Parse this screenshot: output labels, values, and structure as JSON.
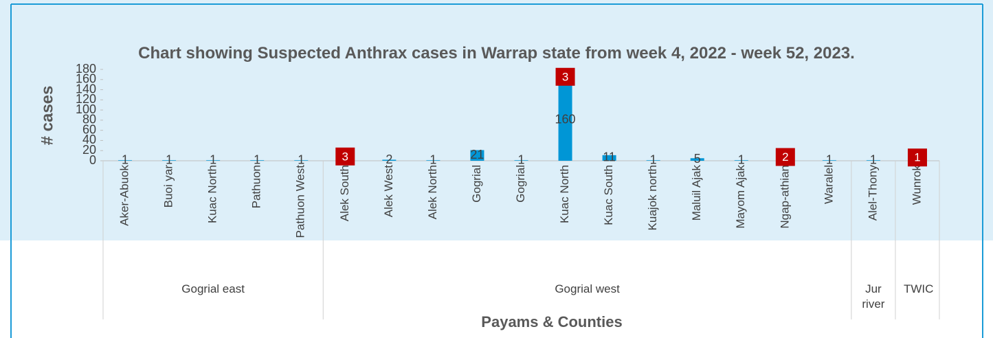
{
  "chart_data": {
    "type": "bar",
    "title": "Chart showing Suspected Anthrax cases in Warrap state from week 4, 2022 - week 52, 2023.",
    "y_label": "# cases",
    "x_label": "Payams & Counties",
    "groups": [
      {
        "label": "Gogrial east",
        "categories": [
          "Aker-Abuok",
          "Buoi yar",
          "Kuac North",
          "Pathuon",
          "Pathuon West"
        ]
      },
      {
        "label": "Gogrial west",
        "categories": [
          "Alek  South",
          "Alek  West",
          "Alek North",
          "Gogrial",
          "Gogrial",
          "Kuac North",
          "Kuac South",
          "Kuajok north",
          "Maluil Ajak",
          "Mayom Ajak",
          "Ngap-athian",
          "Waralel"
        ]
      },
      {
        "label": "Jur river",
        "categories": [
          "Alel-Thony"
        ]
      },
      {
        "label": "TWIC",
        "categories": [
          "Wunrok"
        ]
      }
    ],
    "series": [
      {
        "color": "#0096d6",
        "values": [
          1,
          1,
          1,
          1,
          1,
          3,
          2,
          1,
          21,
          1,
          160,
          11,
          1,
          5,
          1,
          2,
          1,
          1,
          1
        ]
      },
      {
        "color": "#c00000",
        "values": [
          null,
          null,
          null,
          null,
          null,
          3,
          null,
          null,
          null,
          null,
          3,
          null,
          null,
          null,
          null,
          2,
          null,
          null,
          1
        ]
      }
    ],
    "ylim": [
      0,
      180
    ],
    "yticks": [
      0,
      20,
      40,
      60,
      80,
      100,
      120,
      140,
      160,
      180
    ]
  }
}
